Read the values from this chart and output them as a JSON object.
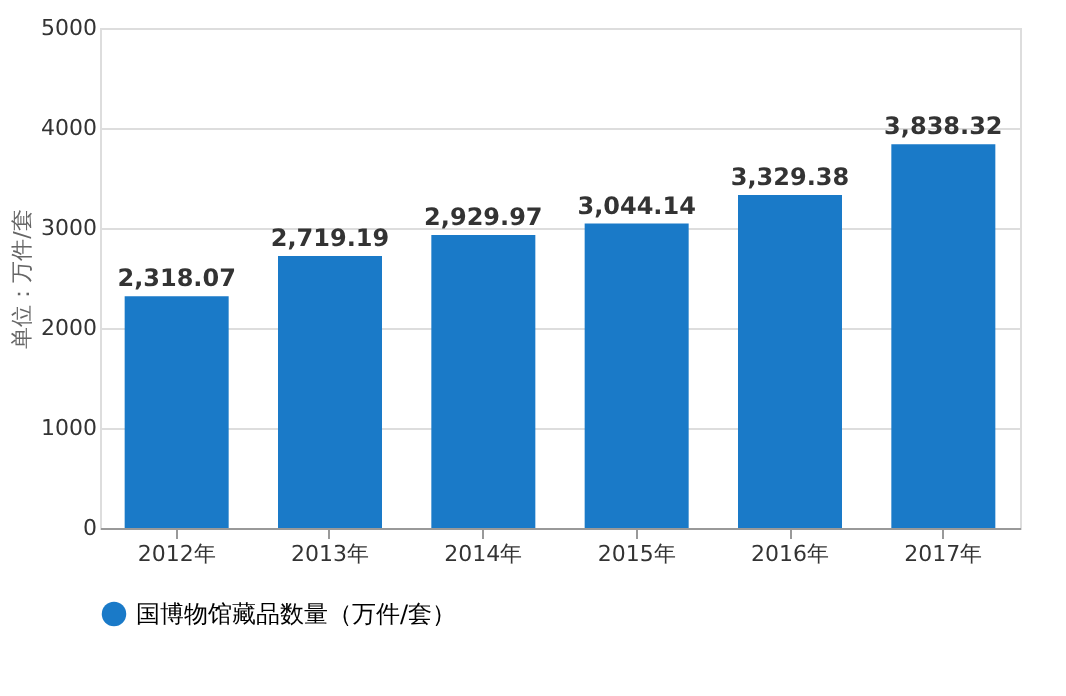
{
  "chart_data": {
    "type": "bar",
    "ylabel": "单位：万件/套",
    "categories": [
      "2012年",
      "2013年",
      "2014年",
      "2015年",
      "2016年",
      "2017年"
    ],
    "series": [
      {
        "name": "国博物馆藏品数量（万件/套）",
        "color": "#1a7ac8",
        "values": [
          2318.07,
          2719.19,
          2929.97,
          3044.14,
          3329.38,
          3838.32
        ],
        "value_labels": [
          "2,318.07",
          "2,719.19",
          "2,929.97",
          "3,044.14",
          "3,329.38",
          "3,838.32"
        ]
      }
    ],
    "ylim": [
      0,
      5000
    ],
    "yticks": [
      0,
      1000,
      2000,
      3000,
      4000,
      5000
    ],
    "grid": "y",
    "legend": "bottom"
  }
}
